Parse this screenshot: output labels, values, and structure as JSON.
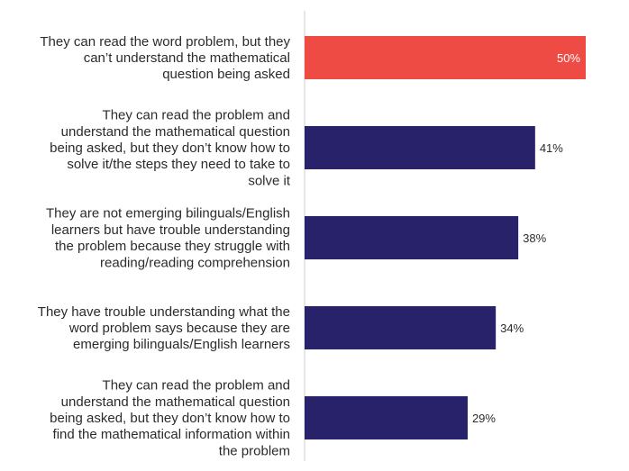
{
  "chart_data": {
    "type": "bar",
    "orientation": "horizontal",
    "categories": [
      [
        "They can read the word problem, but they",
        "can’t understand the mathematical",
        "question being asked"
      ],
      [
        "They can read the problem and",
        "understand the mathematical question",
        "being asked, but they don’t know how to",
        "solve it/the steps they need to take to",
        "solve it"
      ],
      [
        "They are not emerging bilinguals/English",
        "learners but have trouble understanding",
        "the problem because they struggle with",
        "reading/reading comprehension"
      ],
      [
        "They have trouble understanding what the",
        "word problem says because they are",
        "emerging bilinguals/English learners"
      ],
      [
        "They can read the problem and",
        "understand the mathematical question",
        "being asked, but they don’t know how to",
        "find the mathematical information within",
        "the problem"
      ]
    ],
    "values": [
      50,
      41,
      38,
      34,
      29
    ],
    "value_labels": [
      "50%",
      "41%",
      "38%",
      "34%",
      "29%"
    ],
    "colors": [
      "#ef4b45",
      "#27226a",
      "#27226a",
      "#27226a",
      "#27226a"
    ],
    "value_label_colors": [
      "#ffffff",
      "#2b2b2b",
      "#2b2b2b",
      "#2b2b2b",
      "#2b2b2b"
    ],
    "axis_line_color": "#cccccc",
    "xlim": [
      0,
      50
    ],
    "grid": false,
    "legend": "none"
  }
}
